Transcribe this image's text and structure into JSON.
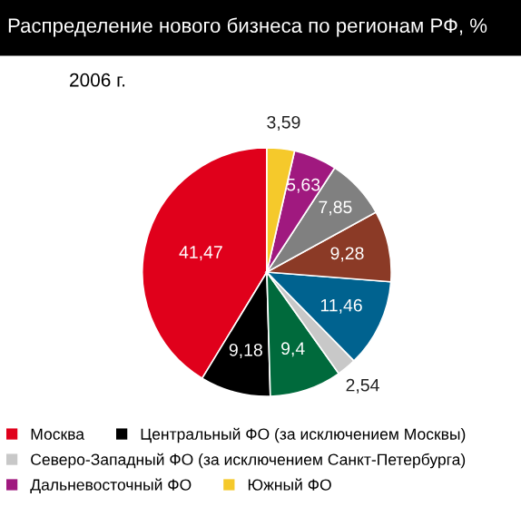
{
  "chart_data": {
    "type": "pie",
    "title": "Распределение нового бизнеса по регионам РФ, %",
    "subtitle": "2006 г.",
    "categories": [
      "Москва",
      "Центральный ФО (за исключением Москвы)",
      null,
      "Северо-Западный ФО (за исключением Санкт-Петербурга)",
      null,
      null,
      null,
      "Дальневосточный ФО",
      "Южный ФО"
    ],
    "values": [
      41.47,
      9.18,
      9.4,
      2.54,
      11.46,
      9.28,
      7.85,
      5.63,
      3.59
    ],
    "value_labels": [
      "41,47",
      "9,18",
      "9,4",
      "2,54",
      "11,46",
      "9,28",
      "7,85",
      "5,63",
      "3,59"
    ],
    "colors": [
      "#e0001b",
      "#000000",
      "#006a3c",
      "#c8c8c8",
      "#00628f",
      "#8b3a26",
      "#808080",
      "#a0197f",
      "#f5c92b"
    ],
    "legend": "bottom"
  }
}
